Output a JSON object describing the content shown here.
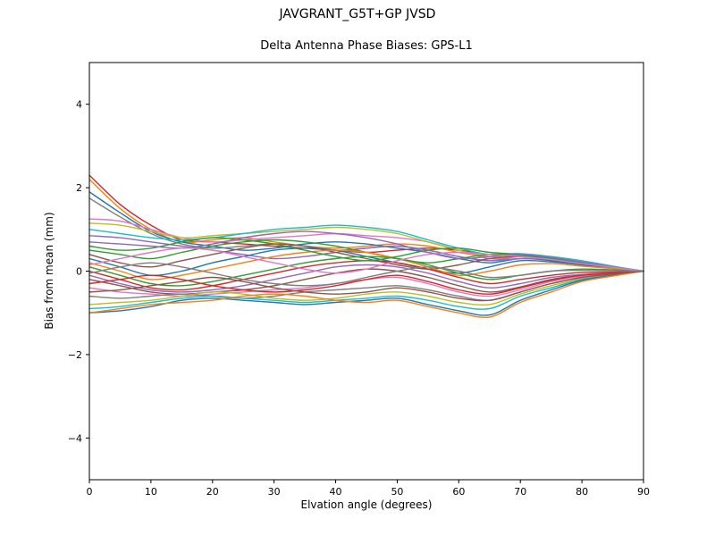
{
  "figure_title": "JAVGRANT_G5T+GP JVSD",
  "chart_data": {
    "type": "line",
    "title": "Delta Antenna Phase Biases: GPS-L1",
    "xlabel": "Elvation angle (degrees)",
    "ylabel": "Bias from mean (mm)",
    "xlim": [
      0,
      90
    ],
    "ylim": [
      -5,
      5
    ],
    "xticks": [
      0,
      10,
      20,
      30,
      40,
      50,
      60,
      70,
      80,
      90
    ],
    "xtick_labels": [
      "0",
      "10",
      "20",
      "30",
      "40",
      "50",
      "60",
      "70",
      "80",
      "90"
    ],
    "yticks": [
      -4,
      -2,
      0,
      2,
      4
    ],
    "ytick_labels": [
      "−4",
      "−2",
      "0",
      "2",
      "4"
    ],
    "grid": false,
    "legend": "none",
    "x": [
      0,
      5,
      10,
      15,
      20,
      25,
      30,
      35,
      40,
      45,
      50,
      55,
      60,
      65,
      70,
      75,
      80,
      85,
      90
    ],
    "series": [
      {
        "name": "line-01",
        "color": "#d62728",
        "values": [
          2.3,
          1.6,
          1.1,
          0.75,
          0.7,
          0.65,
          0.6,
          0.55,
          0.5,
          0.45,
          0.5,
          0.55,
          0.5,
          0.4,
          0.35,
          0.3,
          0.2,
          0.1,
          0
        ]
      },
      {
        "name": "line-02",
        "color": "#ff7f0e",
        "values": [
          2.2,
          1.5,
          1.0,
          0.7,
          0.75,
          0.8,
          0.7,
          0.6,
          0.55,
          0.6,
          0.65,
          0.6,
          0.45,
          0.35,
          0.4,
          0.3,
          0.2,
          0.1,
          0
        ]
      },
      {
        "name": "line-03",
        "color": "#1f77b4",
        "values": [
          1.9,
          1.4,
          0.95,
          0.7,
          0.6,
          0.5,
          0.55,
          0.65,
          0.7,
          0.65,
          0.55,
          0.45,
          0.3,
          0.2,
          0.3,
          0.25,
          0.15,
          0.08,
          0
        ]
      },
      {
        "name": "line-04",
        "color": "#7f7f7f",
        "values": [
          1.75,
          1.3,
          0.9,
          0.65,
          0.55,
          0.6,
          0.65,
          0.6,
          0.5,
          0.55,
          0.6,
          0.5,
          0.35,
          0.25,
          0.35,
          0.3,
          0.2,
          0.1,
          0
        ]
      },
      {
        "name": "line-05",
        "color": "#e377c2",
        "values": [
          1.25,
          1.2,
          1.0,
          0.8,
          0.7,
          0.75,
          0.8,
          0.85,
          0.9,
          0.85,
          0.8,
          0.7,
          0.5,
          0.3,
          0.35,
          0.3,
          0.2,
          0.1,
          0
        ]
      },
      {
        "name": "line-06",
        "color": "#bcbd22",
        "values": [
          1.15,
          1.1,
          0.95,
          0.8,
          0.85,
          0.9,
          0.95,
          1.0,
          1.05,
          1.0,
          0.9,
          0.7,
          0.5,
          0.35,
          0.4,
          0.35,
          0.22,
          0.1,
          0
        ]
      },
      {
        "name": "line-07",
        "color": "#17becf",
        "values": [
          1.0,
          0.9,
          0.8,
          0.75,
          0.8,
          0.9,
          1.0,
          1.05,
          1.1,
          1.05,
          0.95,
          0.75,
          0.55,
          0.4,
          0.42,
          0.35,
          0.25,
          0.12,
          0
        ]
      },
      {
        "name": "line-08",
        "color": "#9467bd",
        "values": [
          0.85,
          0.8,
          0.7,
          0.6,
          0.5,
          0.4,
          0.3,
          0.35,
          0.45,
          0.55,
          0.6,
          0.5,
          0.35,
          0.25,
          0.3,
          0.28,
          0.18,
          0.09,
          0
        ]
      },
      {
        "name": "line-09",
        "color": "#2ca02c",
        "values": [
          0.5,
          0.4,
          0.3,
          0.45,
          0.6,
          0.7,
          0.75,
          0.7,
          0.6,
          0.45,
          0.3,
          0.2,
          0.3,
          0.4,
          0.38,
          0.3,
          0.2,
          0.1,
          0
        ]
      },
      {
        "name": "line-10",
        "color": "#8c564b",
        "values": [
          0.4,
          0.2,
          0.1,
          0.25,
          0.4,
          0.55,
          0.65,
          0.6,
          0.45,
          0.3,
          0.15,
          0.05,
          0.15,
          0.3,
          0.35,
          0.28,
          0.18,
          0.09,
          0
        ]
      },
      {
        "name": "line-11",
        "color": "#1f77b4",
        "values": [
          0.3,
          0.1,
          -0.1,
          0.0,
          0.2,
          0.35,
          0.5,
          0.55,
          0.5,
          0.35,
          0.2,
          0.05,
          -0.05,
          0.1,
          0.25,
          0.22,
          0.15,
          0.08,
          0
        ]
      },
      {
        "name": "line-12",
        "color": "#ff7f0e",
        "values": [
          0.2,
          0.0,
          -0.2,
          -0.1,
          0.05,
          0.2,
          0.35,
          0.45,
          0.5,
          0.45,
          0.3,
          0.1,
          -0.1,
          0.0,
          0.15,
          0.18,
          0.12,
          0.06,
          0
        ]
      },
      {
        "name": "line-13",
        "color": "#2ca02c",
        "values": [
          0.1,
          -0.1,
          -0.3,
          -0.35,
          -0.25,
          -0.1,
          0.05,
          0.2,
          0.3,
          0.35,
          0.3,
          0.15,
          -0.05,
          -0.2,
          -0.1,
          0.0,
          0.05,
          0.03,
          0
        ]
      },
      {
        "name": "line-14",
        "color": "#d62728",
        "values": [
          0.0,
          -0.2,
          -0.4,
          -0.45,
          -0.35,
          -0.2,
          -0.05,
          0.1,
          0.2,
          0.25,
          0.2,
          0.05,
          -0.15,
          -0.3,
          -0.2,
          -0.1,
          -0.03,
          -0.02,
          0
        ]
      },
      {
        "name": "line-15",
        "color": "#9467bd",
        "values": [
          -0.1,
          -0.3,
          -0.45,
          -0.5,
          -0.45,
          -0.35,
          -0.2,
          -0.05,
          0.1,
          0.15,
          0.1,
          -0.05,
          -0.25,
          -0.4,
          -0.3,
          -0.15,
          -0.08,
          -0.04,
          0
        ]
      },
      {
        "name": "line-16",
        "color": "#8c564b",
        "values": [
          -0.2,
          -0.35,
          -0.5,
          -0.55,
          -0.5,
          -0.45,
          -0.35,
          -0.2,
          -0.05,
          0.05,
          0.0,
          -0.15,
          -0.35,
          -0.5,
          -0.38,
          -0.2,
          -0.1,
          -0.05,
          0
        ]
      },
      {
        "name": "line-17",
        "color": "#e377c2",
        "values": [
          -0.4,
          -0.5,
          -0.55,
          -0.6,
          -0.55,
          -0.5,
          -0.45,
          -0.4,
          -0.3,
          -0.2,
          -0.15,
          -0.3,
          -0.5,
          -0.6,
          -0.45,
          -0.25,
          -0.12,
          -0.06,
          0
        ]
      },
      {
        "name": "line-18",
        "color": "#7f7f7f",
        "values": [
          -0.6,
          -0.65,
          -0.6,
          -0.55,
          -0.6,
          -0.65,
          -0.6,
          -0.5,
          -0.45,
          -0.4,
          -0.35,
          -0.45,
          -0.6,
          -0.7,
          -0.5,
          -0.3,
          -0.15,
          -0.07,
          0
        ]
      },
      {
        "name": "line-19",
        "color": "#bcbd22",
        "values": [
          -0.8,
          -0.75,
          -0.7,
          -0.6,
          -0.5,
          -0.55,
          -0.65,
          -0.7,
          -0.65,
          -0.55,
          -0.5,
          -0.6,
          -0.75,
          -0.8,
          -0.55,
          -0.35,
          -0.18,
          -0.08,
          0
        ]
      },
      {
        "name": "line-20",
        "color": "#17becf",
        "values": [
          -0.9,
          -0.85,
          -0.75,
          -0.65,
          -0.6,
          -0.65,
          -0.7,
          -0.75,
          -0.7,
          -0.65,
          -0.6,
          -0.7,
          -0.85,
          -0.9,
          -0.6,
          -0.4,
          -0.2,
          -0.1,
          0
        ]
      },
      {
        "name": "line-21",
        "color": "#1f77b4",
        "values": [
          -1.0,
          -0.95,
          -0.85,
          -0.7,
          -0.65,
          -0.7,
          -0.75,
          -0.8,
          -0.75,
          -0.7,
          -0.65,
          -0.8,
          -0.95,
          -1.05,
          -0.7,
          -0.45,
          -0.22,
          -0.1,
          0
        ]
      },
      {
        "name": "line-22",
        "color": "#ff7f0e",
        "values": [
          -1.0,
          -0.9,
          -0.8,
          -0.75,
          -0.7,
          -0.6,
          -0.55,
          -0.6,
          -0.7,
          -0.75,
          -0.7,
          -0.85,
          -1.0,
          -1.1,
          -0.75,
          -0.5,
          -0.25,
          -0.12,
          0
        ]
      },
      {
        "name": "line-23",
        "color": "#2ca02c",
        "values": [
          0.6,
          0.5,
          0.55,
          0.7,
          0.8,
          0.75,
          0.65,
          0.5,
          0.35,
          0.25,
          0.35,
          0.5,
          0.55,
          0.45,
          0.4,
          0.32,
          0.2,
          0.1,
          0
        ]
      },
      {
        "name": "line-24",
        "color": "#d62728",
        "values": [
          -0.3,
          -0.2,
          -0.1,
          -0.2,
          -0.35,
          -0.45,
          -0.5,
          -0.45,
          -0.35,
          -0.2,
          -0.1,
          -0.25,
          -0.45,
          -0.55,
          -0.4,
          -0.22,
          -0.1,
          -0.05,
          0
        ]
      },
      {
        "name": "line-25",
        "color": "#9467bd",
        "values": [
          0.7,
          0.65,
          0.6,
          0.55,
          0.65,
          0.8,
          0.9,
          0.95,
          0.9,
          0.8,
          0.65,
          0.45,
          0.3,
          0.35,
          0.4,
          0.33,
          0.22,
          0.1,
          0
        ]
      },
      {
        "name": "line-26",
        "color": "#8c564b",
        "values": [
          -0.5,
          -0.45,
          -0.35,
          -0.25,
          -0.15,
          -0.25,
          -0.4,
          -0.5,
          -0.55,
          -0.5,
          -0.4,
          -0.5,
          -0.65,
          -0.7,
          -0.5,
          -0.3,
          -0.15,
          -0.07,
          0
        ]
      },
      {
        "name": "line-27",
        "color": "#e377c2",
        "values": [
          0.15,
          0.3,
          0.45,
          0.55,
          0.5,
          0.35,
          0.2,
          0.05,
          -0.05,
          0.05,
          0.25,
          0.4,
          0.45,
          0.4,
          0.35,
          0.28,
          0.18,
          0.09,
          0
        ]
      },
      {
        "name": "line-28",
        "color": "#7f7f7f",
        "values": [
          -0.05,
          0.1,
          0.2,
          0.1,
          -0.05,
          -0.2,
          -0.3,
          -0.35,
          -0.3,
          -0.15,
          0.0,
          0.1,
          0.0,
          -0.15,
          -0.1,
          0.0,
          0.02,
          0.01,
          0
        ]
      }
    ]
  }
}
